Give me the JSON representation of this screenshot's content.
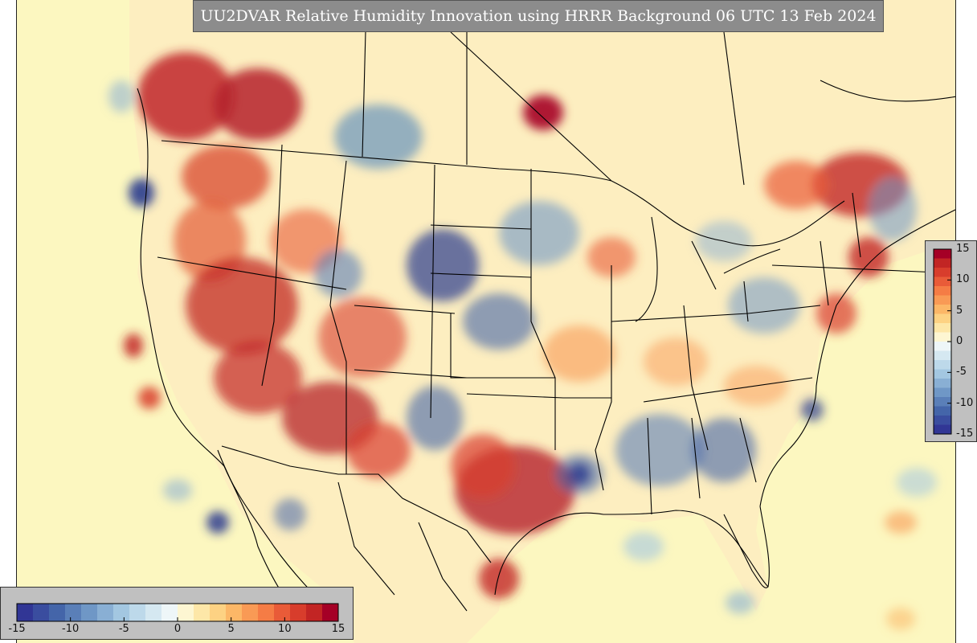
{
  "title": "UU2DVAR Relative Humidity Innovation using HRRR Background 06 UTC 13 Feb 2024",
  "colors": {
    "ocean": "#fcf7c0",
    "positive_strong": "#a50026",
    "positive": "#e0502e",
    "positive_light": "#f8a36a",
    "neutral": "#fdf9ea",
    "negative_light": "#a9cfe5",
    "negative": "#4f86bd",
    "negative_strong": "#283a8e",
    "border_lines": "#000000",
    "panel": "#c0c0c0"
  },
  "colorbar": {
    "range": [
      -15,
      15
    ],
    "colors": [
      "#313695",
      "#3a4d9f",
      "#4465a9",
      "#5a7fb8",
      "#6f97c6",
      "#89afd4",
      "#a3c7e1",
      "#bdd9ea",
      "#d5e8f1",
      "#eef6f8",
      "#fdf6d2",
      "#fde7a8",
      "#fdd283",
      "#fcb767",
      "#f99a55",
      "#f57c45",
      "#e95b38",
      "#d83d2c",
      "#c22524",
      "#a50026"
    ],
    "horizontal_ticks": [
      "-15",
      "-10",
      "-5",
      "0",
      "5",
      "10",
      "15"
    ],
    "vertical_ticks": [
      "15",
      "10",
      "5",
      "0",
      "-5",
      "-10",
      "-15"
    ]
  }
}
